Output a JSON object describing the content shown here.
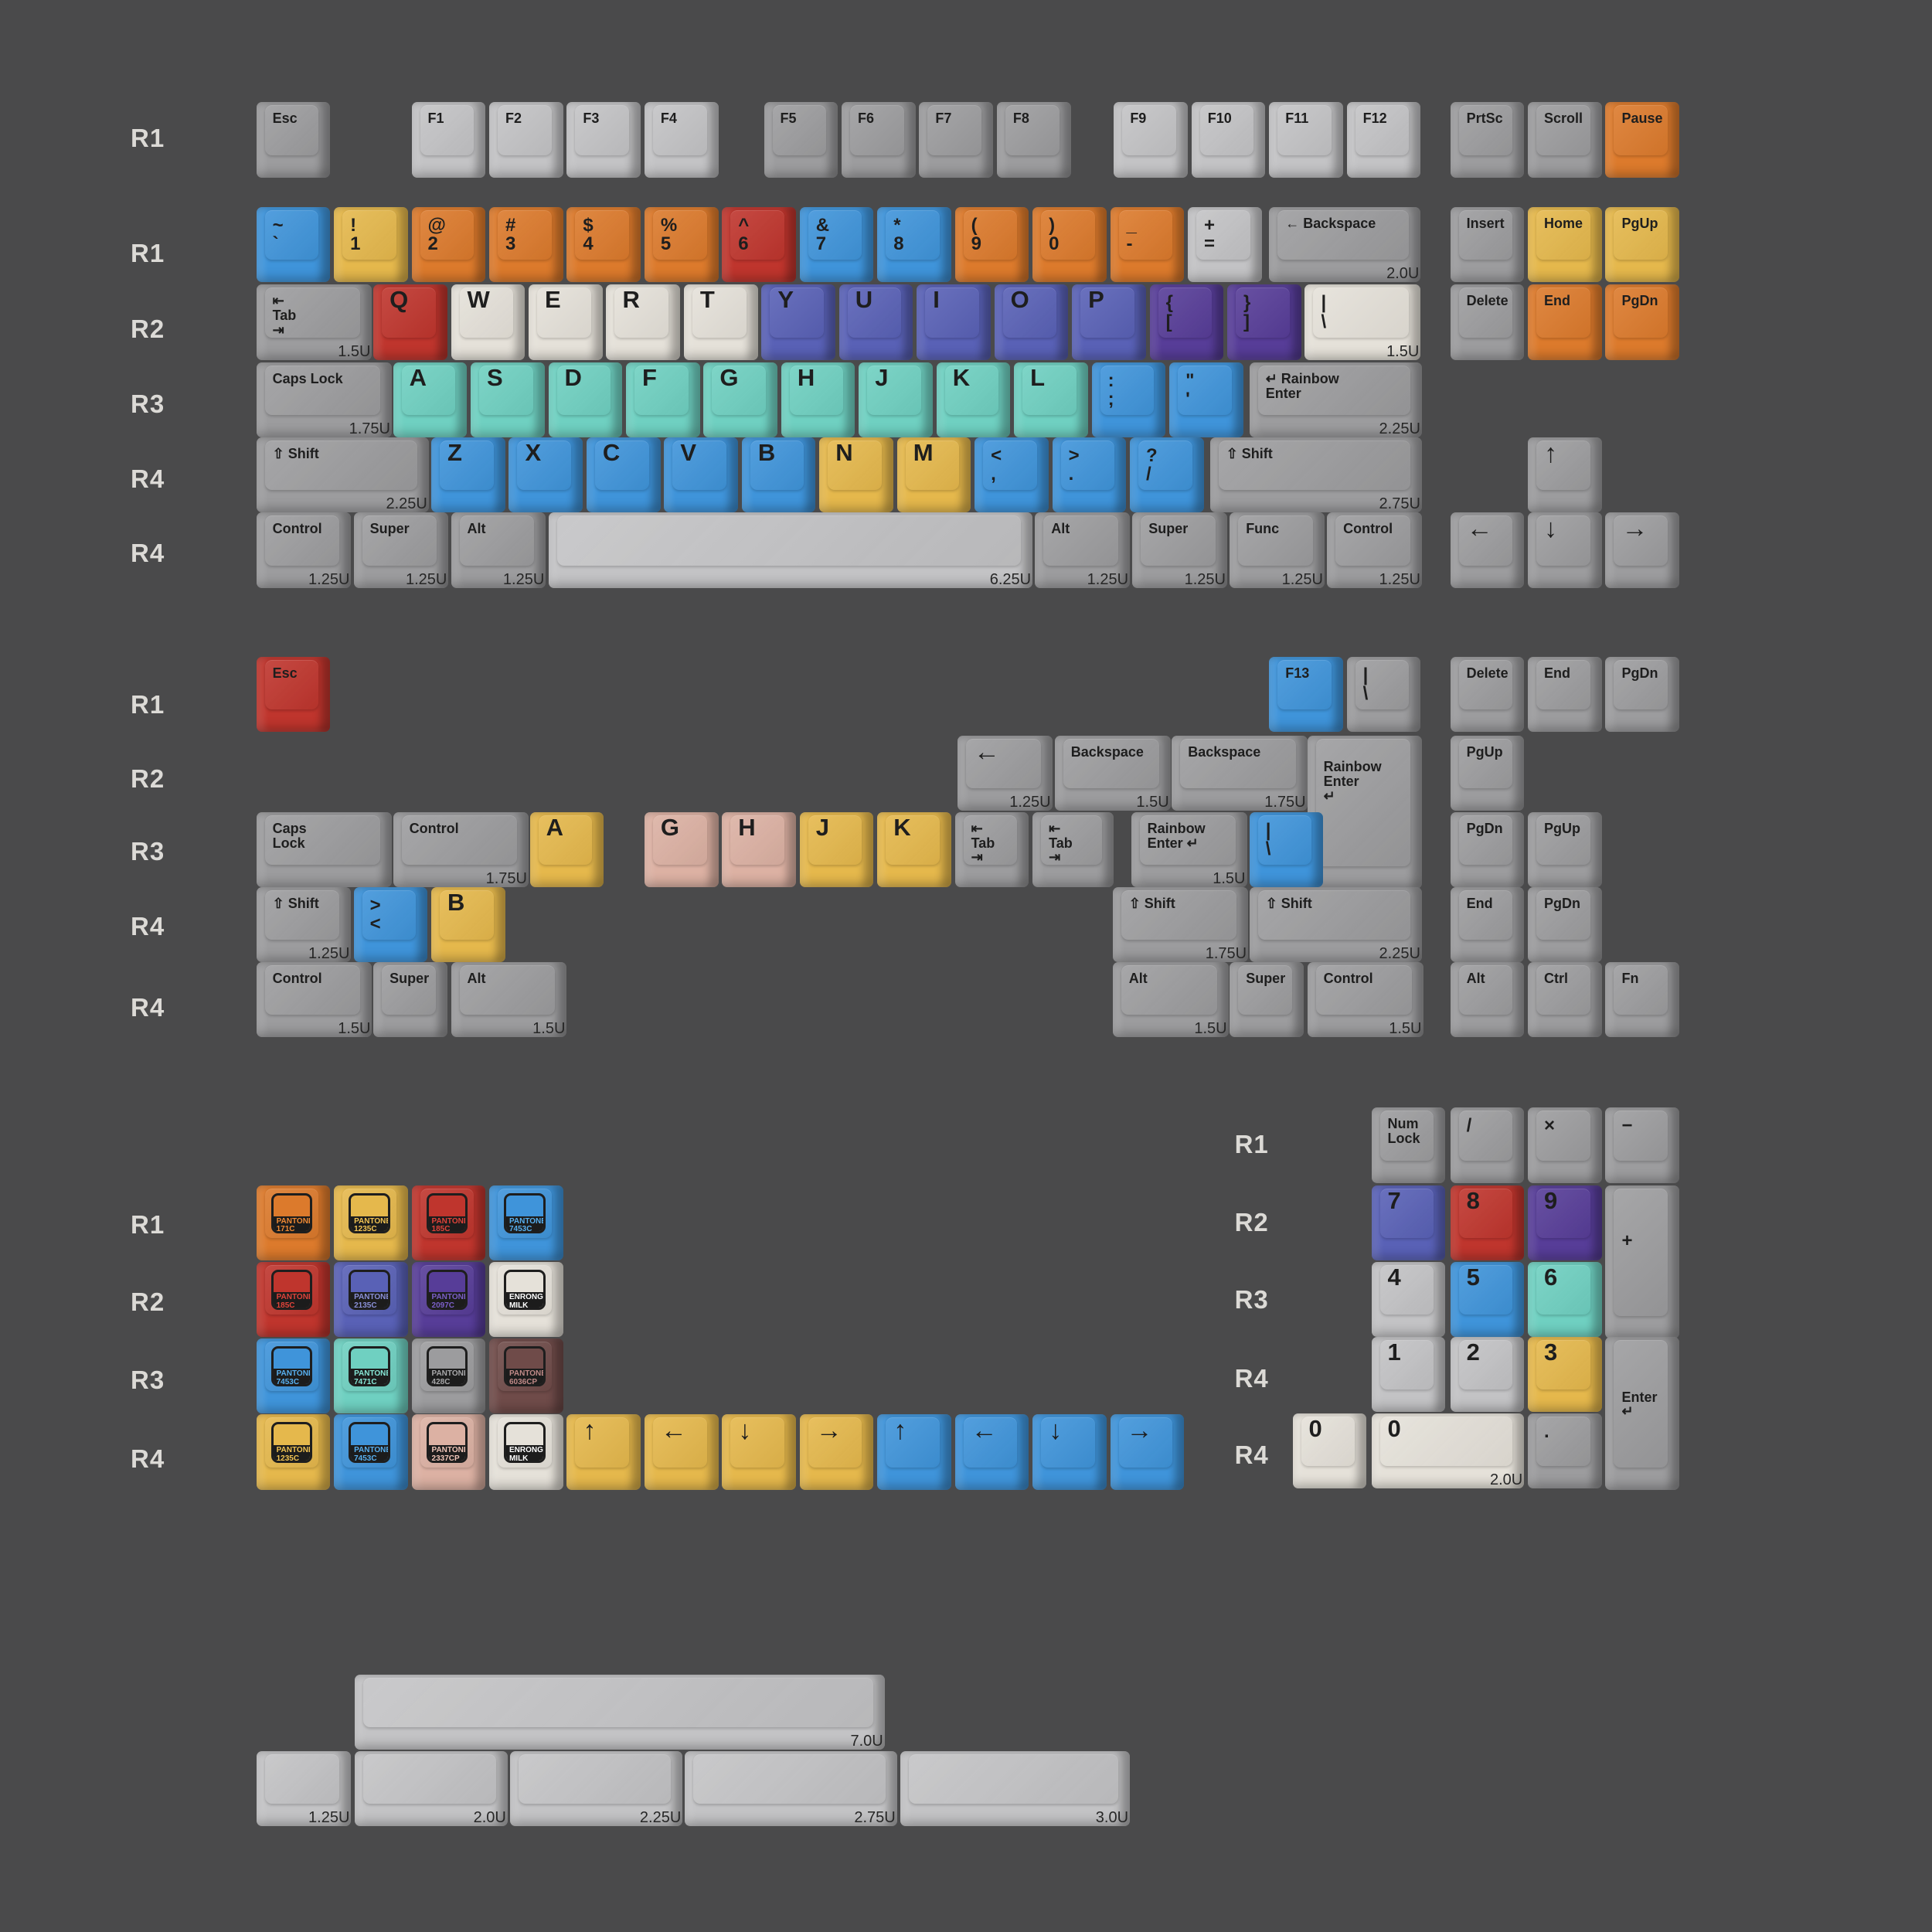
{
  "colors": {
    "grey": "#9c9c9e",
    "lightgrey": "#c3c3c5",
    "orange": "#dc7a2c",
    "yellow": "#e5b84c",
    "red": "#bf352d",
    "blue": "#3f94da",
    "indigo": "#5961b6",
    "purple": "#573d98",
    "cream": "#e5e1d9",
    "teal": "#6fd0c1",
    "pink": "#dcb1a3",
    "brown": "#6f4b49"
  },
  "row_labels": [
    "R1",
    "R1",
    "R2",
    "R3",
    "R4",
    "R4",
    "R1",
    "R2",
    "R3",
    "R4",
    "R4",
    "R1",
    "R2",
    "R3",
    "R4",
    "R1",
    "R2",
    "R3",
    "R4",
    "R4"
  ],
  "keys": [
    {
      "l": "Esc",
      "c": "grey"
    },
    {
      "l": "F1",
      "c": "lightgrey"
    },
    {
      "l": "F2",
      "c": "lightgrey"
    },
    {
      "l": "F3",
      "c": "lightgrey"
    },
    {
      "l": "F4",
      "c": "lightgrey"
    },
    {
      "l": "F5",
      "c": "grey"
    },
    {
      "l": "F6",
      "c": "grey"
    },
    {
      "l": "F7",
      "c": "grey"
    },
    {
      "l": "F8",
      "c": "grey"
    },
    {
      "l": "F9",
      "c": "lightgrey"
    },
    {
      "l": "F10",
      "c": "lightgrey"
    },
    {
      "l": "F11",
      "c": "lightgrey"
    },
    {
      "l": "F12",
      "c": "lightgrey"
    },
    {
      "l": "PrtSc",
      "c": "grey"
    },
    {
      "l": "Scroll",
      "c": "grey"
    },
    {
      "l": "Pause",
      "c": "orange"
    },
    {
      "l": "~",
      "l2": "`",
      "c": "blue"
    },
    {
      "l": "!",
      "l2": "1",
      "c": "yellow"
    },
    {
      "l": "@",
      "l2": "2",
      "c": "orange"
    },
    {
      "l": "#",
      "l2": "3",
      "c": "orange"
    },
    {
      "l": "$",
      "l2": "4",
      "c": "orange"
    },
    {
      "l": "%",
      "l2": "5",
      "c": "orange"
    },
    {
      "l": "^",
      "l2": "6",
      "c": "red"
    },
    {
      "l": "&",
      "l2": "7",
      "c": "blue"
    },
    {
      "l": "*",
      "l2": "8",
      "c": "blue"
    },
    {
      "l": "(",
      "l2": "9",
      "c": "orange"
    },
    {
      "l": ")",
      "l2": "0",
      "c": "orange"
    },
    {
      "l": "_",
      "l2": "-",
      "c": "orange"
    },
    {
      "l": "+",
      "l2": "=",
      "c": "lightgrey"
    },
    {
      "l": "← Backspace",
      "c": "grey",
      "s": "2.0U"
    },
    {
      "l": "Insert",
      "c": "grey"
    },
    {
      "l": "Home",
      "c": "yellow"
    },
    {
      "l": "PgUp",
      "c": "yellow"
    },
    {
      "l": "⇤\nTab\n⇥",
      "c": "grey",
      "s": "1.5U"
    },
    {
      "l": "Q",
      "c": "red"
    },
    {
      "l": "W",
      "c": "cream"
    },
    {
      "l": "E",
      "c": "cream"
    },
    {
      "l": "R",
      "c": "cream"
    },
    {
      "l": "T",
      "c": "cream"
    },
    {
      "l": "Y",
      "c": "indigo"
    },
    {
      "l": "U",
      "c": "indigo"
    },
    {
      "l": "I",
      "c": "indigo"
    },
    {
      "l": "O",
      "c": "indigo"
    },
    {
      "l": "P",
      "c": "indigo"
    },
    {
      "l": "{",
      "l2": "[",
      "c": "purple"
    },
    {
      "l": "}",
      "l2": "]",
      "c": "purple"
    },
    {
      "l": "|",
      "l2": "\\",
      "c": "cream",
      "s": "1.5U"
    },
    {
      "l": "Delete",
      "c": "grey"
    },
    {
      "l": "End",
      "c": "orange"
    },
    {
      "l": "PgDn",
      "c": "orange"
    },
    {
      "l": "Caps Lock",
      "c": "grey",
      "s": "1.75U"
    },
    {
      "l": "A",
      "c": "teal"
    },
    {
      "l": "S",
      "c": "teal"
    },
    {
      "l": "D",
      "c": "teal"
    },
    {
      "l": "F",
      "c": "teal"
    },
    {
      "l": "G",
      "c": "teal"
    },
    {
      "l": "H",
      "c": "teal"
    },
    {
      "l": "J",
      "c": "teal"
    },
    {
      "l": "K",
      "c": "teal"
    },
    {
      "l": "L",
      "c": "teal"
    },
    {
      "l": ":",
      "l2": ";",
      "c": "blue"
    },
    {
      "l": "\"",
      "l2": "'",
      "c": "blue"
    },
    {
      "l": "↵ Rainbow\n     Enter",
      "c": "grey",
      "s": "2.25U"
    },
    {
      "l": "⇧ Shift",
      "c": "grey",
      "s": "2.25U"
    },
    {
      "l": "Z",
      "c": "blue"
    },
    {
      "l": "X",
      "c": "blue"
    },
    {
      "l": "C",
      "c": "blue"
    },
    {
      "l": "V",
      "c": "blue"
    },
    {
      "l": "B",
      "c": "blue"
    },
    {
      "l": "N",
      "c": "yellow"
    },
    {
      "l": "M",
      "c": "yellow"
    },
    {
      "l": "<",
      "l2": ",",
      "c": "blue"
    },
    {
      "l": ">",
      "l2": ".",
      "c": "blue"
    },
    {
      "l": "?",
      "l2": "/",
      "c": "blue"
    },
    {
      "l": "⇧ Shift",
      "c": "grey",
      "s": "2.75U"
    },
    {
      "l": "↑",
      "c": "grey"
    },
    {
      "l": "Control",
      "c": "grey",
      "s": "1.25U"
    },
    {
      "l": "Super",
      "c": "grey",
      "s": "1.25U"
    },
    {
      "l": "Alt",
      "c": "grey",
      "s": "1.25U"
    },
    {
      "l": "",
      "c": "lightgrey",
      "s": "6.25U"
    },
    {
      "l": "Alt",
      "c": "grey",
      "s": "1.25U"
    },
    {
      "l": "Super",
      "c": "grey",
      "s": "1.25U"
    },
    {
      "l": "Func",
      "c": "grey",
      "s": "1.25U"
    },
    {
      "l": "Control",
      "c": "grey",
      "s": "1.25U"
    },
    {
      "l": "←",
      "c": "grey"
    },
    {
      "l": "↓",
      "c": "grey"
    },
    {
      "l": "→",
      "c": "grey"
    },
    {
      "l": "Esc",
      "c": "red"
    },
    {
      "l": "F13",
      "c": "blue"
    },
    {
      "l": "|",
      "l2": "\\",
      "c": "grey"
    },
    {
      "l": "Delete",
      "c": "grey"
    },
    {
      "l": "End",
      "c": "grey"
    },
    {
      "l": "PgDn",
      "c": "grey"
    },
    {
      "l": "←",
      "c": "grey",
      "s": "1.25U"
    },
    {
      "l": "Backspace",
      "c": "grey",
      "s": "1.5U"
    },
    {
      "l": "Backspace",
      "c": "grey",
      "s": "1.75U"
    },
    {
      "l": "\nRainbow\nEnter\n↵",
      "c": "grey"
    },
    {
      "l": "PgUp",
      "c": "grey"
    },
    {
      "l": "Caps\nLock",
      "c": "grey"
    },
    {
      "l": "Control",
      "c": "grey",
      "s": "1.75U"
    },
    {
      "l": "A",
      "c": "yellow"
    },
    {
      "l": "G",
      "c": "pink"
    },
    {
      "l": "H",
      "c": "pink"
    },
    {
      "l": "J",
      "c": "yellow"
    },
    {
      "l": "K",
      "c": "yellow"
    },
    {
      "l": "⇤\nTab\n⇥",
      "c": "grey"
    },
    {
      "l": "⇤\nTab\n⇥",
      "c": "grey"
    },
    {
      "l": "Rainbow\nEnter ↵",
      "c": "grey",
      "s": "1.5U"
    },
    {
      "l": "|",
      "l2": "\\",
      "c": "blue"
    },
    {
      "l": "PgDn",
      "c": "grey"
    },
    {
      "l": "PgUp",
      "c": "grey"
    },
    {
      "l": "⇧ Shift",
      "c": "grey",
      "s": "1.25U"
    },
    {
      "l": ">",
      "l2": "<",
      "c": "blue"
    },
    {
      "l": "B",
      "c": "yellow"
    },
    {
      "l": "⇧ Shift",
      "c": "grey",
      "s": "1.75U"
    },
    {
      "l": "⇧ Shift",
      "c": "grey",
      "s": "2.25U"
    },
    {
      "l": "End",
      "c": "grey"
    },
    {
      "l": "PgDn",
      "c": "grey"
    },
    {
      "l": "Control",
      "c": "grey",
      "s": "1.5U"
    },
    {
      "l": "Super",
      "c": "grey"
    },
    {
      "l": "Alt",
      "c": "grey",
      "s": "1.5U"
    },
    {
      "l": "Alt",
      "c": "grey",
      "s": "1.5U"
    },
    {
      "l": "Super",
      "c": "grey"
    },
    {
      "l": "Control",
      "c": "grey",
      "s": "1.5U"
    },
    {
      "l": "Alt",
      "c": "grey"
    },
    {
      "l": "Ctrl",
      "c": "grey"
    },
    {
      "l": "Fn",
      "c": "grey"
    },
    {
      "l": "Num\nLock",
      "c": "grey"
    },
    {
      "l": "/",
      "c": "grey"
    },
    {
      "l": "×",
      "c": "grey"
    },
    {
      "l": "−",
      "c": "grey"
    },
    {
      "l": "7",
      "c": "indigo"
    },
    {
      "l": "8",
      "c": "red"
    },
    {
      "l": "9",
      "c": "purple"
    },
    {
      "l": "\n\n+",
      "c": "grey"
    },
    {
      "l": "4",
      "c": "lightgrey"
    },
    {
      "l": "5",
      "c": "blue"
    },
    {
      "l": "6",
      "c": "teal"
    },
    {
      "l": "1",
      "c": "lightgrey"
    },
    {
      "l": "2",
      "c": "lightgrey"
    },
    {
      "l": "3",
      "c": "yellow"
    },
    {
      "l": "\n\n\nEnter\n↵",
      "c": "grey"
    },
    {
      "l": "0",
      "c": "cream"
    },
    {
      "l": "0",
      "c": "cream",
      "s": "2.0U"
    },
    {
      "l": ".",
      "c": "grey"
    },
    {
      "p": "PANTONE\n171C",
      "c": "orange"
    },
    {
      "p": "PANTONE\n1235C",
      "c": "yellow"
    },
    {
      "p": "PANTONE\n185C",
      "c": "red"
    },
    {
      "p": "PANTONE\n7453C",
      "c": "blue"
    },
    {
      "p": "PANTONE\n185C",
      "c": "red"
    },
    {
      "p": "PANTONE\n2135C",
      "c": "indigo"
    },
    {
      "p": "PANTONE\n2097C",
      "c": "purple"
    },
    {
      "p": "ENRONG\nMILK",
      "c": "cream"
    },
    {
      "p": "PANTONE\n7453C",
      "c": "blue"
    },
    {
      "p": "PANTONE\n7471C",
      "c": "teal"
    },
    {
      "p": "PANTONE\n428C",
      "c": "grey"
    },
    {
      "p": "PANTONE\n6036CP",
      "c": "brown"
    },
    {
      "p": "PANTONE\n1235C",
      "c": "yellow"
    },
    {
      "p": "PANTONE\n7453C",
      "c": "blue"
    },
    {
      "p": "PANTONE\n2337CP",
      "c": "pink"
    },
    {
      "p": "ENRONG\nMILK",
      "c": "cream"
    },
    {
      "l": "↑",
      "c": "yellow"
    },
    {
      "l": "←",
      "c": "yellow"
    },
    {
      "l": "↓",
      "c": "yellow"
    },
    {
      "l": "→",
      "c": "yellow"
    },
    {
      "l": "↑",
      "c": "blue"
    },
    {
      "l": "←",
      "c": "blue"
    },
    {
      "l": "↓",
      "c": "blue"
    },
    {
      "l": "→",
      "c": "blue"
    },
    {
      "l": "",
      "c": "lightgrey",
      "s": "7.0U"
    },
    {
      "l": "",
      "c": "lightgrey",
      "s": "1.25U"
    },
    {
      "l": "",
      "c": "lightgrey",
      "s": "2.0U"
    },
    {
      "l": "",
      "c": "lightgrey",
      "s": "2.25U"
    },
    {
      "l": "",
      "c": "lightgrey",
      "s": "2.75U"
    },
    {
      "l": "",
      "c": "lightgrey",
      "s": "3.0U"
    }
  ]
}
